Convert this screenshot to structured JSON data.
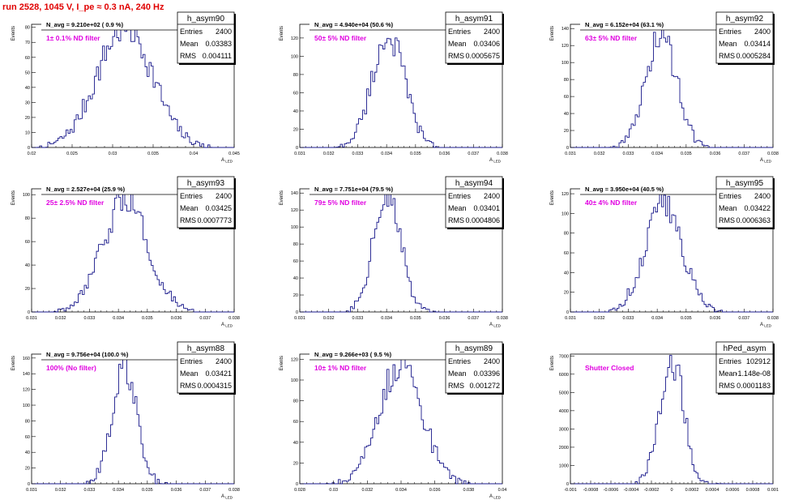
{
  "page_title": "run 2528,  1045 V, I_pe ≈ 0.3 nA, 240 Hz",
  "colors": {
    "title": "#e00000",
    "histogram_line": "#1a1a8c",
    "annotation": "#e000e0",
    "frame": "#000000"
  },
  "stats_labels": {
    "entries": "Entries",
    "mean": "Mean",
    "rms": "RMS"
  },
  "chart_data": [
    {
      "type": "histogram",
      "name": "h_asym90",
      "nav_label": "N_avg = 9.210e+02 ( 0.9 %)",
      "annotation": "1± 0.1% ND filter",
      "ylabel": "Events",
      "xlabel": "A_LED",
      "xlim": [
        0.02,
        0.05
      ],
      "ylim": [
        0,
        82
      ],
      "xticks": [
        "0.02",
        "0.025",
        "0.03",
        "0.035",
        "0.04",
        "0.045"
      ],
      "yticks": [
        "0",
        "10",
        "20",
        "30",
        "40",
        "50",
        "60",
        "70",
        "80"
      ],
      "entries": "2400",
      "mean": "0.03383",
      "rms": "0.004111",
      "mean_value": 0.03383,
      "rms_value": 0.004111,
      "peak": 80,
      "range": [
        0.021,
        0.0475
      ]
    },
    {
      "type": "histogram",
      "name": "h_asym91",
      "nav_label": "N_avg = 4.940e+04 (50.6 %)",
      "annotation": "50± 5% ND filter",
      "ylabel": "Events",
      "xlabel": "A_LED",
      "xlim": [
        0.031,
        0.038
      ],
      "ylim": [
        0,
        135
      ],
      "xticks": [
        "0.031",
        "0.032",
        "0.033",
        "0.034",
        "0.035",
        "0.036",
        "0.037",
        "0.038"
      ],
      "yticks": [
        "0",
        "20",
        "40",
        "60",
        "80",
        "100",
        "120"
      ],
      "entries": "2400",
      "mean": "0.03406",
      "rms": "0.0005675",
      "mean_value": 0.03406,
      "rms_value": 0.0005675,
      "peak": 122,
      "range": [
        0.0322,
        0.0362
      ]
    },
    {
      "type": "histogram",
      "name": "h_asym92",
      "nav_label": "N_avg = 6.152e+04 (63.1 %)",
      "annotation": "63± 5% ND filter",
      "ylabel": "Events",
      "xlabel": "A_LED",
      "xlim": [
        0.031,
        0.038
      ],
      "ylim": [
        0,
        145
      ],
      "xticks": [
        "0.031",
        "0.032",
        "0.033",
        "0.034",
        "0.035",
        "0.036",
        "0.037",
        "0.038"
      ],
      "yticks": [
        "0",
        "20",
        "40",
        "60",
        "80",
        "100",
        "120",
        "140"
      ],
      "entries": "2400",
      "mean": "0.03414",
      "rms": "0.0005284",
      "mean_value": 0.03414,
      "rms_value": 0.0005284,
      "peak": 132,
      "range": [
        0.0323,
        0.036
      ]
    },
    {
      "type": "histogram",
      "name": "h_asym93",
      "nav_label": "N_avg = 2.527e+04 (25.9 %)",
      "annotation": "25± 2.5% ND filter",
      "ylabel": "Events",
      "xlabel": "A_LED",
      "xlim": [
        0.031,
        0.038
      ],
      "ylim": [
        0,
        105
      ],
      "xticks": [
        "0.031",
        "0.032",
        "0.033",
        "0.034",
        "0.035",
        "0.036",
        "0.037",
        "0.038"
      ],
      "yticks": [
        "0",
        "20",
        "40",
        "60",
        "80",
        "100"
      ],
      "entries": "2400",
      "mean": "0.03425",
      "rms": "0.0007773",
      "mean_value": 0.03425,
      "rms_value": 0.0007773,
      "peak": 95,
      "range": [
        0.0318,
        0.0368
      ]
    },
    {
      "type": "histogram",
      "name": "h_asym94",
      "nav_label": "N_avg = 7.751e+04 (79.5 %)",
      "annotation": "79± 5% ND filter",
      "ylabel": "Events",
      "xlabel": "A_LED",
      "xlim": [
        0.031,
        0.038
      ],
      "ylim": [
        0,
        145
      ],
      "xticks": [
        "0.031",
        "0.032",
        "0.033",
        "0.034",
        "0.035",
        "0.036",
        "0.037",
        "0.038"
      ],
      "yticks": [
        "0",
        "20",
        "40",
        "60",
        "80",
        "100",
        "120",
        "140"
      ],
      "entries": "2400",
      "mean": "0.03401",
      "rms": "0.0004806",
      "mean_value": 0.03401,
      "rms_value": 0.0004806,
      "peak": 135,
      "range": [
        0.0325,
        0.0357
      ]
    },
    {
      "type": "histogram",
      "name": "h_asym95",
      "nav_label": "N_avg = 3.950e+04 (40.5 %)",
      "annotation": "40± 4% ND filter",
      "ylabel": "Events",
      "xlabel": "A_LED",
      "xlim": [
        0.031,
        0.038
      ],
      "ylim": [
        0,
        125
      ],
      "xticks": [
        "0.031",
        "0.032",
        "0.033",
        "0.034",
        "0.035",
        "0.036",
        "0.037",
        "0.038"
      ],
      "yticks": [
        "0",
        "20",
        "40",
        "60",
        "80",
        "100",
        "120"
      ],
      "entries": "2400",
      "mean": "0.03422",
      "rms": "0.0006363",
      "mean_value": 0.03422,
      "rms_value": 0.0006363,
      "peak": 112,
      "range": [
        0.0322,
        0.0365
      ]
    },
    {
      "type": "histogram",
      "name": "h_asym88",
      "nav_label": "N_avg = 9.756e+04 (100.0 %)",
      "annotation": "100% (No filter)",
      "ylabel": "Events",
      "xlabel": "A_LED",
      "xlim": [
        0.031,
        0.038
      ],
      "ylim": [
        0,
        165
      ],
      "xticks": [
        "0.031",
        "0.032",
        "0.033",
        "0.034",
        "0.035",
        "0.036",
        "0.037",
        "0.038"
      ],
      "yticks": [
        "0",
        "20",
        "40",
        "60",
        "80",
        "100",
        "120",
        "140",
        "160"
      ],
      "entries": "2400",
      "mean": "0.03421",
      "rms": "0.0004315",
      "mean_value": 0.03421,
      "rms_value": 0.0004315,
      "peak": 148,
      "range": [
        0.0328,
        0.0358
      ]
    },
    {
      "type": "histogram",
      "name": "h_asym89",
      "nav_label": "N_avg = 9.266e+03 ( 9.5 %)",
      "annotation": "10± 1% ND filter",
      "ylabel": "Events",
      "xlabel": "A_LED",
      "xlim": [
        0.028,
        0.04
      ],
      "ylim": [
        0,
        125
      ],
      "xticks": [
        "0.028",
        "0.03",
        "0.032",
        "0.034",
        "0.036",
        "0.038",
        "0.04"
      ],
      "yticks": [
        "0",
        "20",
        "40",
        "60",
        "80",
        "100",
        "120"
      ],
      "entries": "2400",
      "mean": "0.03396",
      "rms": "0.001272",
      "mean_value": 0.03396,
      "rms_value": 0.001272,
      "peak": 115,
      "range": [
        0.0295,
        0.0385
      ]
    },
    {
      "type": "histogram",
      "name": "hPed_asym",
      "nav_label": "",
      "annotation": "Shutter Closed",
      "ylabel": "Events",
      "xlabel": "",
      "xlim": [
        -0.001,
        0.001
      ],
      "ylim": [
        0,
        7100
      ],
      "xticks": [
        "-0.001",
        "-0.0008",
        "-0.0006",
        "-0.0004",
        "-0.0002",
        "0",
        "0.0002",
        "0.0004",
        "0.0006",
        "0.0008",
        "0.001"
      ],
      "yticks": [
        "0",
        "1000",
        "2000",
        "3000",
        "4000",
        "5000",
        "6000",
        "7000"
      ],
      "entries": "102912",
      "mean": "-1.148e-08",
      "rms": "0.0001183",
      "mean_value": 0.0,
      "rms_value": 0.0001183,
      "peak": 6800,
      "range": [
        -0.00055,
        0.00055
      ]
    }
  ]
}
